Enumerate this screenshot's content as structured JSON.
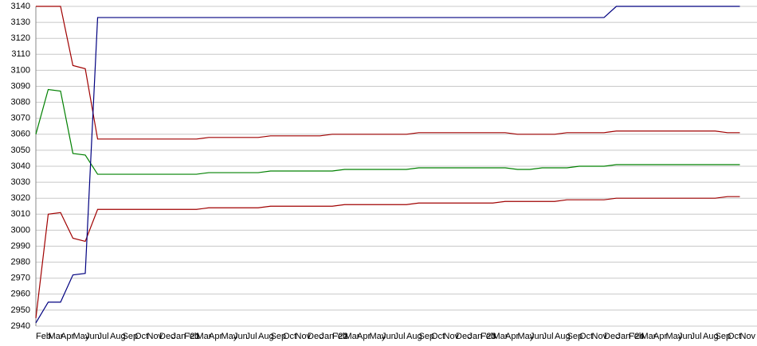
{
  "chart_data": {
    "type": "line",
    "categories": [
      "Feb",
      "Mar",
      "Apr",
      "May",
      "Jun",
      "Jul",
      "Aug",
      "Sep",
      "Oct",
      "Nov",
      "Dec",
      "Jan '21",
      "Feb",
      "Mar",
      "Apr",
      "May",
      "Jun",
      "Jul",
      "Aug",
      "Sep",
      "Oct",
      "Nov",
      "Dec",
      "Jan '22",
      "Feb",
      "Mar",
      "Apr",
      "May",
      "Jun",
      "Jul",
      "Aug",
      "Sep",
      "Oct",
      "Nov",
      "Dec",
      "Jan '23",
      "Feb",
      "Mar",
      "Apr",
      "May",
      "Jun",
      "Jul",
      "Aug",
      "Sep",
      "Oct",
      "Nov",
      "Dec",
      "Jan '24",
      "Feb",
      "Mar",
      "Apr",
      "May",
      "Jun",
      "Jul",
      "Aug",
      "Sep",
      "Oct",
      "Nov"
    ],
    "series": [
      {
        "color": "#a00000",
        "values": [
          3140,
          3140,
          3140,
          3103,
          3101,
          3057,
          3057,
          3057,
          3057,
          3057,
          3057,
          3057,
          3057,
          3057,
          3058,
          3058,
          3058,
          3058,
          3058,
          3059,
          3059,
          3059,
          3059,
          3059,
          3060,
          3060,
          3060,
          3060,
          3060,
          3060,
          3060,
          3061,
          3061,
          3061,
          3061,
          3061,
          3061,
          3061,
          3061,
          3060,
          3060,
          3060,
          3060,
          3061,
          3061,
          3061,
          3061,
          3062,
          3062,
          3062,
          3062,
          3062,
          3062,
          3062,
          3062,
          3062,
          3061,
          3061
        ]
      },
      {
        "color": "#008000",
        "values": [
          3060,
          3088,
          3087,
          3048,
          3047,
          3035,
          3035,
          3035,
          3035,
          3035,
          3035,
          3035,
          3035,
          3035,
          3036,
          3036,
          3036,
          3036,
          3036,
          3037,
          3037,
          3037,
          3037,
          3037,
          3037,
          3038,
          3038,
          3038,
          3038,
          3038,
          3038,
          3039,
          3039,
          3039,
          3039,
          3039,
          3039,
          3039,
          3039,
          3038,
          3038,
          3039,
          3039,
          3039,
          3040,
          3040,
          3040,
          3041,
          3041,
          3041,
          3041,
          3041,
          3041,
          3041,
          3041,
          3041,
          3041,
          3041
        ]
      },
      {
        "color": "#a00000",
        "values": [
          2945,
          3010,
          3011,
          2995,
          2993,
          3013,
          3013,
          3013,
          3013,
          3013,
          3013,
          3013,
          3013,
          3013,
          3014,
          3014,
          3014,
          3014,
          3014,
          3015,
          3015,
          3015,
          3015,
          3015,
          3015,
          3016,
          3016,
          3016,
          3016,
          3016,
          3016,
          3017,
          3017,
          3017,
          3017,
          3017,
          3017,
          3017,
          3018,
          3018,
          3018,
          3018,
          3018,
          3019,
          3019,
          3019,
          3019,
          3020,
          3020,
          3020,
          3020,
          3020,
          3020,
          3020,
          3020,
          3020,
          3021,
          3021
        ]
      },
      {
        "color": "#000080",
        "values": [
          2942,
          2955,
          2955,
          2972,
          2973,
          3133,
          3133,
          3133,
          3133,
          3133,
          3133,
          3133,
          3133,
          3133,
          3133,
          3133,
          3133,
          3133,
          3133,
          3133,
          3133,
          3133,
          3133,
          3133,
          3133,
          3133,
          3133,
          3133,
          3133,
          3133,
          3133,
          3133,
          3133,
          3133,
          3133,
          3133,
          3133,
          3133,
          3133,
          3133,
          3133,
          3133,
          3133,
          3133,
          3133,
          3133,
          3133,
          3140,
          3140,
          3140,
          3140,
          3140,
          3140,
          3140,
          3140,
          3140,
          3140,
          3140
        ]
      }
    ],
    "ylim": [
      2940,
      3140
    ],
    "yticks": [
      2940,
      2950,
      2960,
      2970,
      2980,
      2990,
      3000,
      3010,
      3020,
      3030,
      3040,
      3050,
      3060,
      3070,
      3080,
      3090,
      3100,
      3110,
      3120,
      3130,
      3140
    ],
    "grid": true
  }
}
